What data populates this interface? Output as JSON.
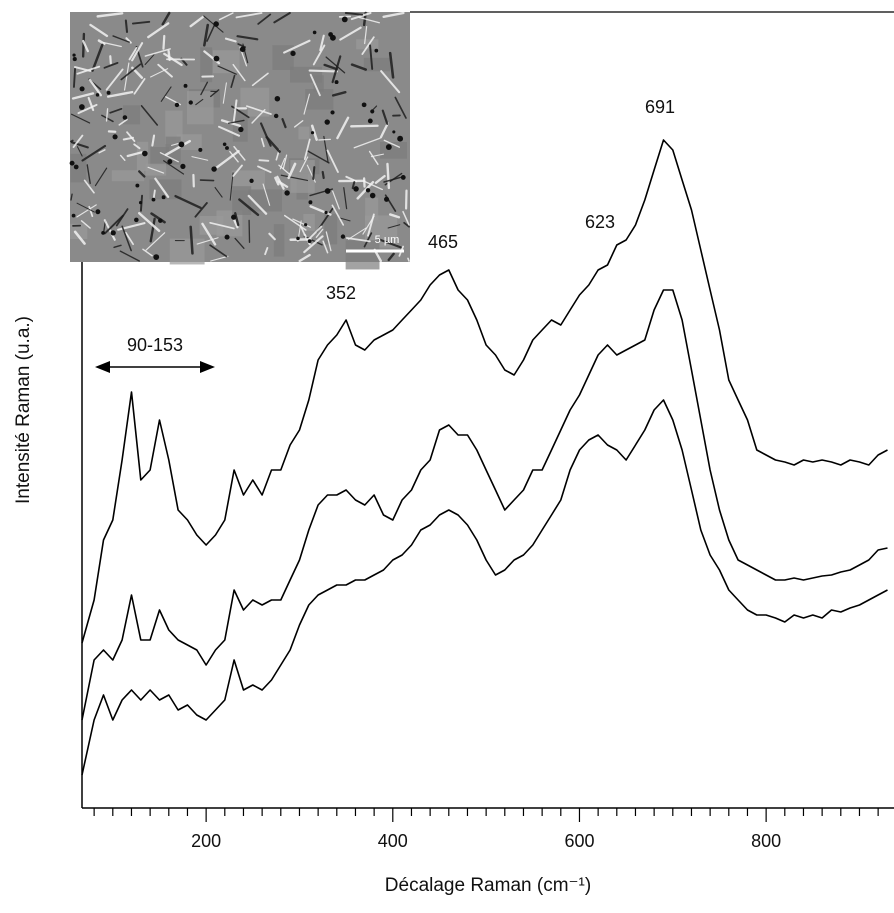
{
  "chart_data": {
    "type": "line",
    "xlabel": "Décalage Raman (cm⁻¹)",
    "ylabel": "Intensité Raman (u.a.)",
    "xlim": [
      67,
      937
    ],
    "ylim": [
      0,
      796
    ],
    "xticks": [
      200,
      400,
      600,
      800
    ],
    "xminorticks": [
      80,
      100,
      120,
      140,
      160,
      180,
      220,
      240,
      260,
      280,
      300,
      320,
      340,
      360,
      380,
      420,
      440,
      460,
      480,
      500,
      520,
      540,
      560,
      580,
      620,
      640,
      660,
      680,
      700,
      720,
      740,
      760,
      780,
      820,
      840,
      860,
      880,
      900,
      920
    ],
    "annotations": [
      "691",
      "623",
      "465",
      "352",
      "90-153"
    ],
    "inset_scale_bar": "5 µm",
    "x": [
      67,
      80,
      90,
      100,
      110,
      120,
      130,
      140,
      150,
      160,
      170,
      180,
      190,
      200,
      210,
      220,
      230,
      240,
      250,
      260,
      270,
      280,
      290,
      300,
      310,
      320,
      330,
      340,
      350,
      360,
      370,
      380,
      390,
      400,
      410,
      420,
      430,
      440,
      450,
      460,
      470,
      480,
      490,
      500,
      510,
      520,
      530,
      540,
      550,
      560,
      570,
      580,
      590,
      600,
      610,
      620,
      630,
      640,
      650,
      660,
      670,
      680,
      690,
      700,
      710,
      720,
      730,
      740,
      750,
      760,
      770,
      780,
      790,
      800,
      810,
      820,
      830,
      840,
      850,
      860,
      870,
      880,
      890,
      900,
      910,
      920,
      930
    ],
    "series": [
      {
        "color": "#000000",
        "values": [
          165,
          208,
          268,
          288,
          348,
          416,
          328,
          338,
          388,
          348,
          298,
          288,
          273,
          263,
          273,
          288,
          338,
          313,
          328,
          313,
          338,
          338,
          363,
          378,
          408,
          448,
          463,
          473,
          488,
          463,
          458,
          468,
          473,
          478,
          488,
          498,
          508,
          523,
          533,
          538,
          518,
          508,
          488,
          463,
          453,
          438,
          433,
          448,
          468,
          478,
          488,
          483,
          498,
          513,
          523,
          538,
          543,
          563,
          568,
          583,
          608,
          638,
          668,
          658,
          628,
          598,
          558,
          518,
          478,
          428,
          408,
          388,
          358,
          353,
          348,
          346,
          343,
          348,
          346,
          348,
          346,
          343,
          348,
          346,
          343,
          353,
          358
        ]
      },
      {
        "color": "#000000",
        "values": [
          88,
          148,
          158,
          148,
          168,
          213,
          168,
          168,
          198,
          178,
          168,
          163,
          158,
          143,
          158,
          168,
          218,
          198,
          208,
          203,
          208,
          208,
          228,
          248,
          278,
          303,
          313,
          313,
          318,
          308,
          303,
          313,
          293,
          288,
          308,
          318,
          338,
          348,
          378,
          383,
          373,
          373,
          358,
          338,
          318,
          298,
          308,
          318,
          338,
          338,
          358,
          378,
          398,
          413,
          433,
          453,
          463,
          453,
          458,
          463,
          468,
          498,
          518,
          518,
          488,
          438,
          388,
          338,
          298,
          268,
          248,
          243,
          238,
          233,
          228,
          228,
          230,
          228,
          230,
          232,
          233,
          236,
          238,
          243,
          248,
          258,
          260
        ]
      },
      {
        "color": "#000000",
        "values": [
          33,
          88,
          113,
          88,
          108,
          118,
          108,
          118,
          108,
          113,
          98,
          103,
          93,
          88,
          98,
          108,
          148,
          118,
          123,
          118,
          128,
          143,
          158,
          183,
          203,
          213,
          218,
          223,
          223,
          228,
          228,
          233,
          238,
          248,
          253,
          263,
          278,
          283,
          293,
          298,
          293,
          283,
          268,
          248,
          233,
          238,
          248,
          253,
          263,
          278,
          293,
          308,
          338,
          358,
          368,
          373,
          363,
          358,
          348,
          363,
          378,
          398,
          408,
          388,
          358,
          318,
          278,
          253,
          238,
          218,
          208,
          198,
          193,
          193,
          190,
          186,
          193,
          190,
          193,
          190,
          198,
          196,
          200,
          203,
          208,
          213,
          218
        ]
      }
    ]
  }
}
